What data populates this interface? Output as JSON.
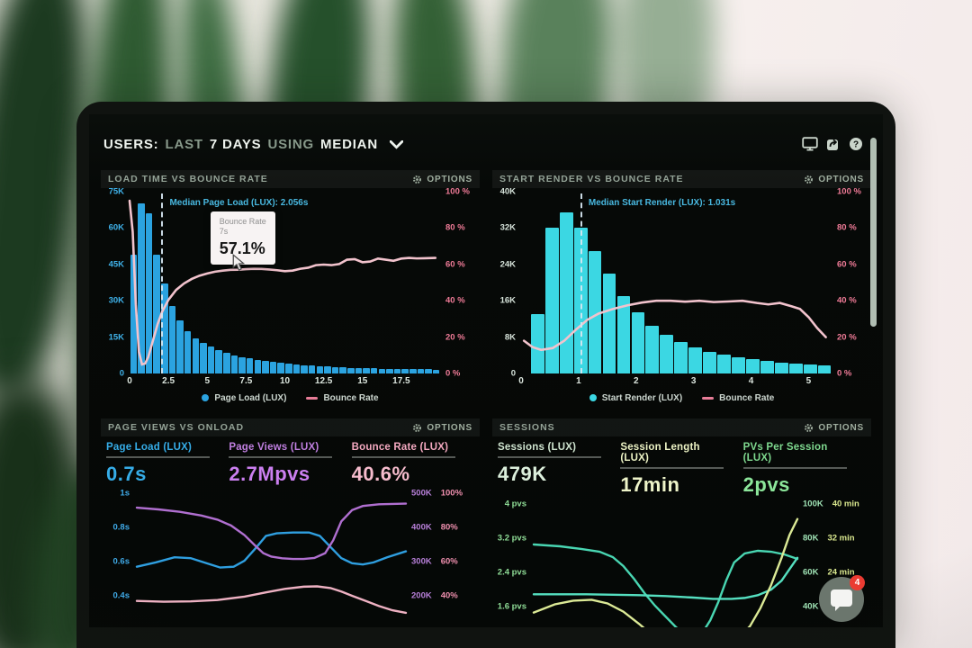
{
  "header": {
    "users_label": "USERS:",
    "range_prefix": "LAST",
    "range_value": "7 DAYS",
    "using_label": "USING",
    "agg_value": "MEDIAN",
    "icons": [
      "display-icon",
      "share-icon",
      "help-icon"
    ]
  },
  "options_label": "OPTIONS",
  "chat": {
    "badge": "4"
  },
  "colors": {
    "bar_blue": "#2ba3e0",
    "bar_cyan": "#3bd7e3",
    "bounce_pink": "#f2c3cd",
    "median_blue": "#4cc2ec"
  },
  "chart_data": [
    {
      "id": "load-time-vs-bounce-rate",
      "type": "bar",
      "title": "LOAD TIME VS BOUNCE RATE",
      "x_range": [
        0,
        20
      ],
      "x_ticks": [
        "0",
        "2.5",
        "5",
        "7.5",
        "10",
        "12.5",
        "15",
        "17.5"
      ],
      "y_left_ticks": [
        "75K",
        "60K",
        "45K",
        "30K",
        "15K",
        "0"
      ],
      "y_left_max_k": 75,
      "y_right_ticks": [
        "100 %",
        "80 %",
        "60 %",
        "40 %",
        "20 %",
        "0 %"
      ],
      "y_right_range": [
        0,
        100
      ],
      "bar_color": "#2ba3e0",
      "bin_width_s": 0.5,
      "bars_k": [
        49,
        70,
        66,
        49,
        37,
        28,
        22,
        17.5,
        14.5,
        12.5,
        11,
        9.5,
        8.5,
        7.5,
        6.8,
        6.2,
        5.6,
        5.1,
        4.7,
        4.3,
        4,
        3.7,
        3.4,
        3.2,
        3,
        2.8,
        2.65,
        2.5,
        2.4,
        2.3,
        2.2,
        2.1,
        2,
        1.95,
        1.9,
        1.85,
        1.8,
        1.75,
        1.7,
        1.65
      ],
      "line": {
        "name": "Bounce Rate",
        "color": "#f2c3cd",
        "points": [
          [
            0,
            95
          ],
          [
            0.2,
            78
          ],
          [
            0.4,
            38
          ],
          [
            0.6,
            12
          ],
          [
            0.8,
            5
          ],
          [
            1.0,
            5.5
          ],
          [
            1.2,
            9
          ],
          [
            1.5,
            18
          ],
          [
            1.8,
            27
          ],
          [
            2.1,
            34
          ],
          [
            2.5,
            40.5
          ],
          [
            3,
            46
          ],
          [
            3.5,
            49.5
          ],
          [
            4,
            52
          ],
          [
            4.5,
            53.8
          ],
          [
            5,
            55
          ],
          [
            5.5,
            56
          ],
          [
            6,
            56.6
          ],
          [
            6.5,
            57
          ],
          [
            7,
            57.1
          ],
          [
            7.5,
            57.4
          ],
          [
            8,
            57.6
          ],
          [
            8.5,
            57.5
          ],
          [
            9,
            57.2
          ],
          [
            9.5,
            56.8
          ],
          [
            10,
            56.3
          ],
          [
            10.5,
            56.6
          ],
          [
            11,
            57.6
          ],
          [
            11.5,
            58.2
          ],
          [
            12,
            59.6
          ],
          [
            12.5,
            59.9
          ],
          [
            13,
            59.6
          ],
          [
            13.5,
            60.2
          ],
          [
            14,
            62.6
          ],
          [
            14.5,
            62.9
          ],
          [
            15,
            61.2
          ],
          [
            15.5,
            61.6
          ],
          [
            16,
            63.2
          ],
          [
            16.5,
            62.6
          ],
          [
            17,
            62
          ],
          [
            17.5,
            63.2
          ],
          [
            18,
            63.6
          ],
          [
            18.5,
            63.3
          ],
          [
            19,
            63.4
          ],
          [
            19.7,
            63.6
          ]
        ]
      },
      "median": {
        "value_s": 2.056,
        "label": "Median Page Load (LUX): 2.056s"
      },
      "tooltip": {
        "series": "Bounce Rate",
        "x": "7s",
        "value": "57.1%"
      },
      "legend": [
        {
          "swatch": "dot",
          "color": "#2ba3e0",
          "label": "Page Load (LUX)"
        },
        {
          "swatch": "line",
          "color": "#e87d98",
          "label": "Bounce Rate"
        }
      ]
    },
    {
      "id": "start-render-vs-bounce-rate",
      "type": "bar",
      "title": "START RENDER VS BOUNCE RATE",
      "x_range": [
        0,
        5.4
      ],
      "x_ticks": [
        "0",
        "1",
        "2",
        "3",
        "4",
        "5"
      ],
      "y_left_ticks": [
        "40K",
        "32K",
        "24K",
        "16K",
        "8K",
        "0"
      ],
      "y_left_max_k": 40,
      "y_right_ticks": [
        "100 %",
        "80 %",
        "60 %",
        "40 %",
        "20 %",
        "0 %"
      ],
      "y_right_range": [
        0,
        100
      ],
      "bar_color": "#3bd7e3",
      "bin_width_s": 0.25,
      "bars_k": [
        13,
        32,
        35.5,
        32,
        27,
        22,
        17,
        13.5,
        10.5,
        8.5,
        7,
        5.8,
        4.8,
        4.2,
        3.6,
        3.1,
        2.7,
        2.4,
        2.1,
        1.9,
        1.7
      ],
      "line": {
        "name": "Bounce Rate",
        "color": "#f2c3cd",
        "points": [
          [
            0.05,
            18
          ],
          [
            0.2,
            14.5
          ],
          [
            0.35,
            13
          ],
          [
            0.55,
            14
          ],
          [
            0.75,
            18
          ],
          [
            0.95,
            24
          ],
          [
            1.15,
            29.5
          ],
          [
            1.35,
            33
          ],
          [
            1.6,
            35.5
          ],
          [
            1.85,
            37.5
          ],
          [
            2.1,
            39
          ],
          [
            2.35,
            40
          ],
          [
            2.6,
            40
          ],
          [
            2.85,
            39.5
          ],
          [
            3.1,
            40
          ],
          [
            3.35,
            39.3
          ],
          [
            3.6,
            39.6
          ],
          [
            3.85,
            40
          ],
          [
            4.1,
            38.8
          ],
          [
            4.3,
            38
          ],
          [
            4.5,
            38.8
          ],
          [
            4.7,
            37
          ],
          [
            4.85,
            35.5
          ],
          [
            5.0,
            31
          ],
          [
            5.15,
            25
          ],
          [
            5.3,
            20
          ]
        ]
      },
      "median": {
        "value_s": 1.031,
        "label": "Median Start Render (LUX): 1.031s"
      },
      "legend": [
        {
          "swatch": "dot",
          "color": "#3bd7e3",
          "label": "Start Render (LUX)"
        },
        {
          "swatch": "line",
          "color": "#e87d98",
          "label": "Bounce Rate"
        }
      ]
    },
    {
      "id": "page-views-vs-onload",
      "type": "line",
      "title": "PAGE VIEWS VS ONLOAD",
      "metrics": [
        {
          "label": "Page Load (LUX)",
          "value": "0.7s"
        },
        {
          "label": "Page Views (LUX)",
          "value": "2.7Mpvs"
        },
        {
          "label": "Bounce Rate (LUX)",
          "value": "40.6%"
        }
      ],
      "y_left_ticks": [
        "1s",
        "0.8s",
        "0.6s",
        "0.4s"
      ],
      "y_right_pairs": [
        [
          "500K",
          "100%"
        ],
        [
          "400K",
          "80%"
        ],
        [
          "300K",
          "60%"
        ],
        [
          "200K",
          "40%"
        ]
      ],
      "series": [
        {
          "name": "page-load",
          "unit": "s",
          "color": "#2f9fe0",
          "window": [
            0.2,
            1.0
          ],
          "points": [
            [
              0,
              0.565
            ],
            [
              7,
              0.59
            ],
            [
              14,
              0.62
            ],
            [
              20,
              0.615
            ],
            [
              26,
              0.585
            ],
            [
              31,
              0.56
            ],
            [
              36,
              0.565
            ],
            [
              40,
              0.6
            ],
            [
              44,
              0.67
            ],
            [
              48,
              0.745
            ],
            [
              52,
              0.76
            ],
            [
              58,
              0.765
            ],
            [
              64,
              0.765
            ],
            [
              68,
              0.745
            ],
            [
              72,
              0.68
            ],
            [
              76,
              0.615
            ],
            [
              80,
              0.585
            ],
            [
              84,
              0.578
            ],
            [
              88,
              0.59
            ],
            [
              93,
              0.62
            ],
            [
              100,
              0.655
            ]
          ]
        },
        {
          "name": "page-views",
          "unit": "K",
          "color": "#b06fd0",
          "window": [
            100,
            500
          ],
          "points": [
            [
              0,
              455
            ],
            [
              8,
              450
            ],
            [
              16,
              443
            ],
            [
              24,
              432
            ],
            [
              30,
              420
            ],
            [
              35,
              403
            ],
            [
              40,
              375
            ],
            [
              44,
              344
            ],
            [
              47,
              322
            ],
            [
              50,
              312
            ],
            [
              54,
              307
            ],
            [
              58,
              305
            ],
            [
              62,
              305
            ],
            [
              66,
              308
            ],
            [
              70,
              322
            ],
            [
              73,
              360
            ],
            [
              76,
              415
            ],
            [
              80,
              448
            ],
            [
              84,
              460
            ],
            [
              90,
              465
            ],
            [
              100,
              467
            ]
          ]
        },
        {
          "name": "bounce-rate",
          "unit": "%",
          "color": "#eeb1c2",
          "window": [
            20,
            100
          ],
          "points": [
            [
              0,
              36.5
            ],
            [
              10,
              36
            ],
            [
              20,
              36.2
            ],
            [
              30,
              37
            ],
            [
              40,
              39
            ],
            [
              48,
              41.5
            ],
            [
              55,
              43.5
            ],
            [
              62,
              44.8
            ],
            [
              67,
              45
            ],
            [
              72,
              44
            ],
            [
              76,
              42
            ],
            [
              80,
              39.5
            ],
            [
              85,
              36.5
            ],
            [
              90,
              33.5
            ],
            [
              95,
              31
            ],
            [
              100,
              29.5
            ]
          ]
        }
      ]
    },
    {
      "id": "sessions",
      "type": "line",
      "title": "SESSIONS",
      "metrics": [
        {
          "label": "Sessions (LUX)",
          "value": "479K"
        },
        {
          "label": "Session Length (LUX)",
          "value": "17min"
        },
        {
          "label": "PVs Per Session (LUX)",
          "value": "2pvs"
        }
      ],
      "y_left_ticks": [
        "4 pvs",
        "3.2 pvs",
        "2.4 pvs",
        "1.6 pvs"
      ],
      "y_right_pairs": [
        [
          "100K",
          "40 min"
        ],
        [
          "80K",
          "32 min"
        ],
        [
          "60K",
          "24 min"
        ],
        [
          "40K",
          ""
        ]
      ],
      "series": [
        {
          "name": "sessions",
          "unit": "K",
          "color": "#49d6b2",
          "window": [
            27,
            103
          ],
          "points": [
            [
              0,
              80
            ],
            [
              10,
              79
            ],
            [
              18,
              77.5
            ],
            [
              25,
              76
            ],
            [
              30,
              73
            ],
            [
              34,
              68
            ],
            [
              38,
              61
            ],
            [
              42,
              53
            ],
            [
              46,
              46
            ],
            [
              50,
              40
            ],
            [
              54,
              34
            ],
            [
              58,
              30
            ],
            [
              61,
              29
            ],
            [
              64,
              31
            ],
            [
              67,
              38
            ],
            [
              70,
              48
            ],
            [
              73,
              60
            ],
            [
              76,
              70
            ],
            [
              80,
              75
            ],
            [
              85,
              76.5
            ],
            [
              90,
              76
            ],
            [
              95,
              74.5
            ],
            [
              100,
              72
            ]
          ]
        },
        {
          "name": "pvs-per-session",
          "unit": "pvs",
          "color": "#55dfc0",
          "window": [
            1.1,
            4.1
          ],
          "points": [
            [
              0,
              2.1
            ],
            [
              20,
              2.1
            ],
            [
              40,
              2.08
            ],
            [
              50,
              2.06
            ],
            [
              60,
              2.03
            ],
            [
              68,
              2.0
            ],
            [
              75,
              2.0
            ],
            [
              80,
              2.02
            ],
            [
              85,
              2.08
            ],
            [
              90,
              2.2
            ],
            [
              94,
              2.4
            ],
            [
              97,
              2.65
            ],
            [
              100,
              2.9
            ]
          ]
        },
        {
          "name": "session-length",
          "unit": "min",
          "color": "#dcea96",
          "window": [
            11,
            41
          ],
          "points": [
            [
              0,
              17
            ],
            [
              8,
              18.8
            ],
            [
              15,
              19.6
            ],
            [
              22,
              19.8
            ],
            [
              28,
              19
            ],
            [
              34,
              17.2
            ],
            [
              40,
              14.5
            ],
            [
              46,
              11.5
            ],
            [
              52,
              9
            ],
            [
              58,
              7.5
            ],
            [
              64,
              7.5
            ],
            [
              70,
              8.5
            ],
            [
              76,
              10.5
            ],
            [
              82,
              14
            ],
            [
              86,
              18
            ],
            [
              90,
              23
            ],
            [
              94,
              29
            ],
            [
              97,
              34
            ],
            [
              100,
              37.5
            ]
          ]
        }
      ]
    }
  ]
}
